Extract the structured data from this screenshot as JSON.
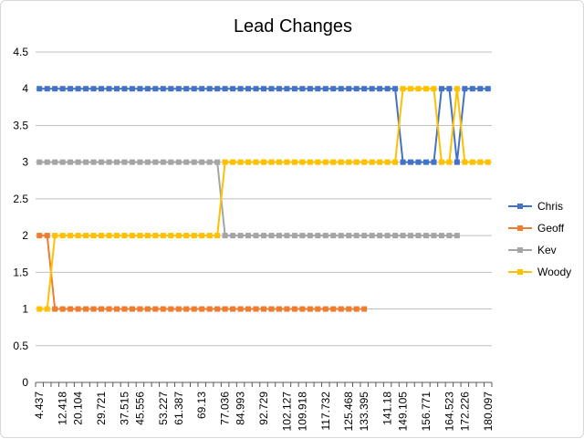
{
  "chart_data": {
    "type": "line",
    "title": "Lead Changes",
    "xlabel": "",
    "ylabel": "",
    "ylim": [
      0,
      4.5
    ],
    "y_ticks": [
      "0",
      "0.5",
      "1",
      "1.5",
      "2",
      "2.5",
      "3",
      "3.5",
      "4",
      "4.5"
    ],
    "grid": "horizontal",
    "legend_position": "right",
    "x_tick_labels": [
      "4.437",
      "12.418",
      "20.104",
      "29.721",
      "37.515",
      "45.556",
      "53.227",
      "61.387",
      "69.13",
      "77.036",
      "84.993",
      "92.729",
      "102.127",
      "109.918",
      "117.732",
      "125.468",
      "133.395",
      "141.18",
      "149.105",
      "156.771",
      "164.523",
      "172.226",
      "180.097"
    ],
    "series": [
      {
        "name": "Chris",
        "color": "#4472c4",
        "values": [
          4,
          4,
          4,
          4,
          4,
          4,
          4,
          4,
          4,
          4,
          4,
          4,
          4,
          4,
          4,
          4,
          4,
          4,
          4,
          4,
          4,
          4,
          4,
          4,
          4,
          4,
          4,
          4,
          4,
          4,
          4,
          4,
          4,
          4,
          4,
          4,
          4,
          4,
          4,
          4,
          4,
          4,
          4,
          4,
          4,
          4,
          4,
          3,
          3,
          3,
          3,
          3,
          4,
          4,
          3,
          4,
          4,
          4,
          4
        ]
      },
      {
        "name": "Geoff",
        "color": "#ed7d31",
        "values": [
          2,
          2,
          1,
          1,
          1,
          1,
          1,
          1,
          1,
          1,
          1,
          1,
          1,
          1,
          1,
          1,
          1,
          1,
          1,
          1,
          1,
          1,
          1,
          1,
          1,
          1,
          1,
          1,
          1,
          1,
          1,
          1,
          1,
          1,
          1,
          1,
          1,
          1,
          1,
          1,
          1,
          1,
          1,
          null,
          null,
          null,
          null,
          null,
          null,
          null,
          null,
          null,
          null,
          null,
          null,
          null,
          null,
          null,
          null
        ]
      },
      {
        "name": "Kev",
        "color": "#a5a5a5",
        "values": [
          3,
          3,
          3,
          3,
          3,
          3,
          3,
          3,
          3,
          3,
          3,
          3,
          3,
          3,
          3,
          3,
          3,
          3,
          3,
          3,
          3,
          3,
          3,
          3,
          2,
          2,
          2,
          2,
          2,
          2,
          2,
          2,
          2,
          2,
          2,
          2,
          2,
          2,
          2,
          2,
          2,
          2,
          2,
          2,
          2,
          2,
          2,
          2,
          2,
          2,
          2,
          2,
          2,
          2,
          2,
          null,
          null,
          null,
          null
        ]
      },
      {
        "name": "Woody",
        "color": "#ffc000",
        "values": [
          1,
          1,
          2,
          2,
          2,
          2,
          2,
          2,
          2,
          2,
          2,
          2,
          2,
          2,
          2,
          2,
          2,
          2,
          2,
          2,
          2,
          2,
          2,
          2,
          3,
          3,
          3,
          3,
          3,
          3,
          3,
          3,
          3,
          3,
          3,
          3,
          3,
          3,
          3,
          3,
          3,
          3,
          3,
          3,
          3,
          3,
          3,
          4,
          4,
          4,
          4,
          4,
          3,
          3,
          4,
          3,
          3,
          3,
          3
        ]
      }
    ]
  }
}
